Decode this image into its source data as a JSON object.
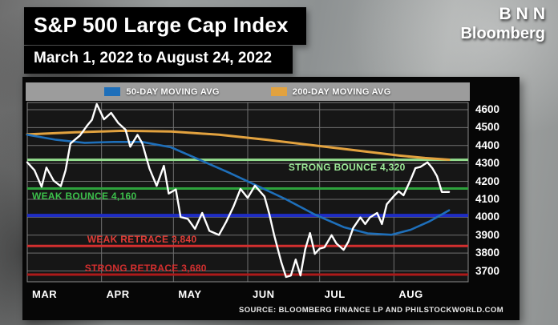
{
  "header": {
    "title": "S&P 500 Large Cap Index",
    "subtitle": "March 1, 2022 to August 24, 2022"
  },
  "logo": {
    "line1": "BNN",
    "line2": "Bloomberg"
  },
  "legend": {
    "items": [
      {
        "label": "50-DAY MOVING AVG",
        "color": "#1e6fba"
      },
      {
        "label": "200-DAY MOVING AVG",
        "color": "#e2a23f"
      }
    ]
  },
  "footer": {
    "source": "SOURCE: BLOOMBERG FINANCE LP AND PHILSTOCKWORLD.COM"
  },
  "chart_data": {
    "type": "line",
    "title": "S&P 500 Large Cap Index",
    "subtitle": "March 1, 2022 to August 24, 2022",
    "legend_position": "top",
    "grid": true,
    "x_axis": {
      "unit": "calendar days since Mar 1 2022",
      "range": [
        0,
        184
      ],
      "month_labels": [
        "MAR",
        "APR",
        "MAY",
        "JUN",
        "JUL",
        "AUG"
      ],
      "month_starts": [
        0,
        31,
        61,
        92,
        122,
        153
      ]
    },
    "y_axis": {
      "range": [
        3640,
        4640
      ],
      "ticks": [
        4600,
        4500,
        4400,
        4300,
        4200,
        4100,
        4000,
        3900,
        3800,
        3700
      ]
    },
    "hlines": [
      {
        "id": "strong-bounce",
        "label": "STRONG BOUNCE 4,320",
        "value": 4320,
        "color": "#93dd8e",
        "text_color": "#9ce897",
        "width": 3,
        "label_day": 109,
        "label_side": "below"
      },
      {
        "id": "weak-bounce",
        "label": "WEAK BOUNCE 4,160",
        "value": 4160,
        "color": "#2da23c",
        "text_color": "#3cc04b",
        "width": 3,
        "label_day": 2,
        "label_side": "below"
      },
      {
        "id": "level-4000",
        "label": "",
        "value": 4010,
        "color": "#1f2dc4",
        "text_color": "#1f2dc4",
        "width": 4,
        "label_day": 0,
        "label_side": "below"
      },
      {
        "id": "weak-retrace",
        "label": "WEAK RETRACE 3,840",
        "value": 3840,
        "color": "#d32f2f",
        "text_color": "#e03c36",
        "width": 3,
        "label_day": 25,
        "label_side": "above"
      },
      {
        "id": "strong-retrace",
        "label": "STRONG RETRACE 3,680",
        "value": 3680,
        "color": "#ad1a1a",
        "text_color": "#d32f2f",
        "width": 3,
        "label_day": 24,
        "label_side": "above"
      }
    ],
    "series": [
      {
        "id": "200-day-ma",
        "name": "200-DAY MOVING AVG",
        "color": "#e2a23f",
        "width": 3,
        "points": [
          [
            0,
            4462
          ],
          [
            20,
            4474
          ],
          [
            40,
            4482
          ],
          [
            60,
            4478
          ],
          [
            80,
            4460
          ],
          [
            100,
            4432
          ],
          [
            120,
            4400
          ],
          [
            140,
            4368
          ],
          [
            155,
            4344
          ],
          [
            166,
            4330
          ],
          [
            176,
            4321
          ]
        ]
      },
      {
        "id": "50-day-ma",
        "name": "50-DAY MOVING AVG",
        "color": "#1e6fba",
        "width": 2.6,
        "points": [
          [
            0,
            4460
          ],
          [
            12,
            4432
          ],
          [
            24,
            4415
          ],
          [
            36,
            4420
          ],
          [
            48,
            4420
          ],
          [
            60,
            4390
          ],
          [
            72,
            4320
          ],
          [
            84,
            4250
          ],
          [
            96,
            4175
          ],
          [
            108,
            4100
          ],
          [
            120,
            4015
          ],
          [
            132,
            3945
          ],
          [
            142,
            3910
          ],
          [
            152,
            3902
          ],
          [
            160,
            3930
          ],
          [
            168,
            3978
          ],
          [
            176,
            4038
          ]
        ]
      },
      {
        "id": "sp500-price",
        "name": "S&P 500",
        "color": "#ffffff",
        "width": 2.4,
        "points": [
          [
            0,
            4306
          ],
          [
            3,
            4262
          ],
          [
            6,
            4170
          ],
          [
            8,
            4277
          ],
          [
            11,
            4204
          ],
          [
            14,
            4173
          ],
          [
            16,
            4262
          ],
          [
            18,
            4411
          ],
          [
            22,
            4456
          ],
          [
            25,
            4511
          ],
          [
            27,
            4543
          ],
          [
            29,
            4631
          ],
          [
            32,
            4546
          ],
          [
            35,
            4582
          ],
          [
            38,
            4525
          ],
          [
            41,
            4488
          ],
          [
            43,
            4393
          ],
          [
            46,
            4459
          ],
          [
            48,
            4412
          ],
          [
            51,
            4272
          ],
          [
            54,
            4175
          ],
          [
            57,
            4287
          ],
          [
            59,
            4132
          ],
          [
            62,
            4155
          ],
          [
            64,
            4001
          ],
          [
            67,
            3991
          ],
          [
            70,
            3935
          ],
          [
            73,
            4024
          ],
          [
            76,
            3924
          ],
          [
            80,
            3901
          ],
          [
            83,
            3974
          ],
          [
            86,
            4058
          ],
          [
            89,
            4158
          ],
          [
            92,
            4108
          ],
          [
            95,
            4176
          ],
          [
            99,
            4116
          ],
          [
            101,
            4018
          ],
          [
            103,
            3901
          ],
          [
            106,
            3750
          ],
          [
            108,
            3667
          ],
          [
            110,
            3675
          ],
          [
            112,
            3764
          ],
          [
            114,
            3675
          ],
          [
            116,
            3821
          ],
          [
            118,
            3912
          ],
          [
            120,
            3796
          ],
          [
            122,
            3825
          ],
          [
            124,
            3832
          ],
          [
            127,
            3900
          ],
          [
            129,
            3854
          ],
          [
            132,
            3818
          ],
          [
            134,
            3863
          ],
          [
            136,
            3940
          ],
          [
            139,
            3999
          ],
          [
            141,
            3962
          ],
          [
            143,
            3999
          ],
          [
            146,
            4024
          ],
          [
            148,
            3962
          ],
          [
            150,
            4072
          ],
          [
            153,
            4118
          ],
          [
            155,
            4145
          ],
          [
            157,
            4122
          ],
          [
            160,
            4210
          ],
          [
            162,
            4274
          ],
          [
            164,
            4280
          ],
          [
            167,
            4306
          ],
          [
            169,
            4274
          ],
          [
            171,
            4229
          ],
          [
            173,
            4141
          ],
          [
            176,
            4141
          ]
        ]
      }
    ]
  }
}
